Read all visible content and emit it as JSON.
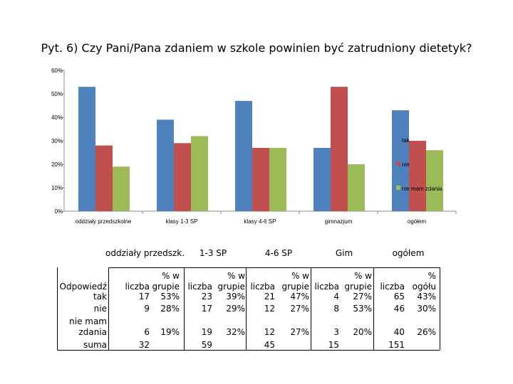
{
  "title": "Pyt. 6) Czy Pani/Pana zdaniem w szkole powinien być zatrudniony dietetyk?",
  "chart_data": {
    "type": "bar",
    "title": "Pyt. 6) Czy Pani/Pana zdaniem w szkole powinien być zatrudniony dietetyk?",
    "categories": [
      "oddziały przedszkolne",
      "klasy 1-3 SP",
      "klasy 4-6 SP",
      "gimnazjum",
      "ogółem"
    ],
    "series": [
      {
        "name": "tak",
        "color": "#4f81bd",
        "values": [
          53,
          39,
          47,
          27,
          43
        ]
      },
      {
        "name": "nie",
        "color": "#c0504d",
        "values": [
          28,
          29,
          27,
          53,
          30
        ]
      },
      {
        "name": "nie mam zdania",
        "color": "#9bbb59",
        "values": [
          19,
          32,
          27,
          20,
          26
        ]
      }
    ],
    "yticks": [
      "0%",
      "10%",
      "20%",
      "30%",
      "40%",
      "50%",
      "60%"
    ],
    "ylim": [
      0,
      60
    ],
    "grid": false,
    "legend": "right"
  },
  "table": {
    "groups": [
      "oddziały przedszk.",
      "1-3 SP",
      "4-6 SP",
      "Gim",
      "ogółem"
    ],
    "row_header": "Odpowiedź",
    "col_liczba": "liczba",
    "col_pct": "% w grupie",
    "col_pct_total": "% ogółu",
    "rows": [
      {
        "label": "tak",
        "values": [
          "17",
          "53%",
          "23",
          "39%",
          "21",
          "47%",
          "4",
          "27%",
          "65",
          "43%"
        ]
      },
      {
        "label": "nie",
        "values": [
          "9",
          "28%",
          "17",
          "29%",
          "12",
          "27%",
          "8",
          "53%",
          "46",
          "30%"
        ]
      },
      {
        "label": "nie mam zdania",
        "values": [
          "6",
          "19%",
          "19",
          "32%",
          "12",
          "27%",
          "3",
          "20%",
          "40",
          "26%"
        ]
      },
      {
        "label": "suma",
        "values": [
          "32",
          "",
          "59",
          "",
          "45",
          "",
          "15",
          "",
          "151",
          ""
        ]
      }
    ]
  }
}
